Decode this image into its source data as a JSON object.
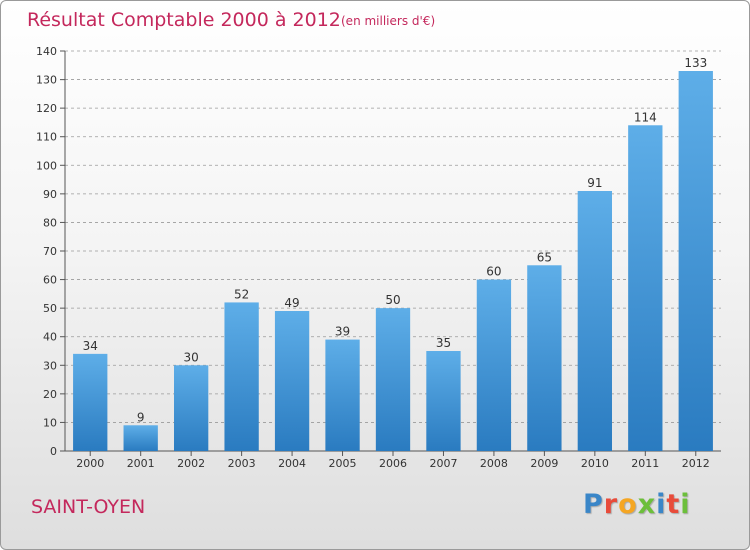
{
  "header": {
    "title": "Résultat Comptable 2000 à 2012",
    "subtitle": "(en milliers d'€)"
  },
  "footer": {
    "town": "SAINT-OYEN",
    "logo_letters": [
      {
        "char": "P",
        "color": "#3a86c8"
      },
      {
        "char": "r",
        "color": "#e84b3a"
      },
      {
        "char": "o",
        "color": "#f5a623"
      },
      {
        "char": "x",
        "color": "#6cbf3b"
      },
      {
        "char": "i",
        "color": "#3a86c8"
      },
      {
        "char": "t",
        "color": "#e84b3a"
      },
      {
        "char": "i",
        "color": "#6cbf3b"
      }
    ]
  },
  "colors": {
    "bar_light": "#5eaee8",
    "bar_dark": "#2a7bc0",
    "title": "#c4285c",
    "grid": "#9a9a9a"
  },
  "chart_data": {
    "type": "bar",
    "title": "Résultat Comptable 2000 à 2012",
    "subtitle": "(en milliers d'€)",
    "xlabel": "",
    "ylabel": "",
    "categories": [
      "2000",
      "2001",
      "2002",
      "2003",
      "2004",
      "2005",
      "2006",
      "2007",
      "2008",
      "2009",
      "2010",
      "2011",
      "2012"
    ],
    "values": [
      34,
      9,
      30,
      52,
      49,
      39,
      50,
      35,
      60,
      65,
      91,
      114,
      133
    ],
    "ylim": [
      0,
      140
    ],
    "yticks": [
      0,
      10,
      20,
      30,
      40,
      50,
      60,
      70,
      80,
      90,
      100,
      110,
      120,
      130,
      140
    ],
    "grid": true,
    "grid_style": "dashed-horizontal",
    "data_labels": true
  }
}
